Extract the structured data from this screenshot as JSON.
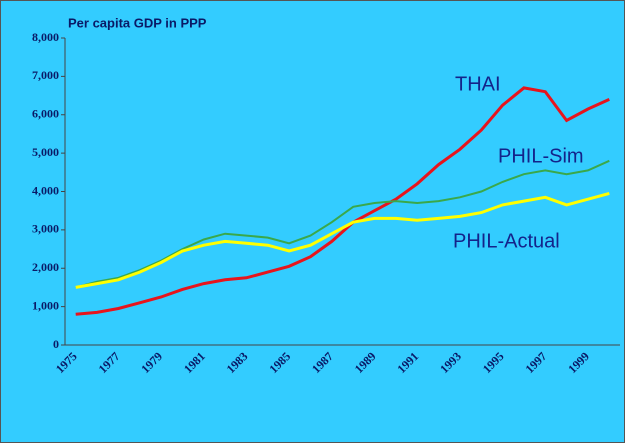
{
  "chart_data": {
    "type": "line",
    "title": "Per capita GDP in PPP",
    "categories": [
      "1975",
      null,
      "1977",
      null,
      "1979",
      null,
      "1981",
      null,
      "1983",
      null,
      "1985",
      null,
      "1987",
      null,
      "1989",
      null,
      "1991",
      null,
      "1993",
      null,
      "1995",
      null,
      "1997",
      null,
      "1999",
      null
    ],
    "series": [
      {
        "name": "THAI",
        "color": "#e8141c",
        "values": [
          800,
          850,
          950,
          1100,
          1250,
          1450,
          1600,
          1700,
          1750,
          1900,
          2050,
          2300,
          2700,
          3200,
          3500,
          3800,
          4200,
          4700,
          5100,
          5600,
          6250,
          6700,
          6600,
          5850,
          6150,
          6400
        ]
      },
      {
        "name": "PHIL-Sim",
        "color": "#3aa84a",
        "values": [
          1500,
          1650,
          1750,
          1950,
          2200,
          2500,
          2750,
          2900,
          2850,
          2800,
          2650,
          2850,
          3200,
          3600,
          3700,
          3750,
          3700,
          3750,
          3850,
          4000,
          4250,
          4450,
          4550,
          4450,
          4550,
          4800
        ]
      },
      {
        "name": "PHIL-Actual",
        "color": "#ffff00",
        "values": [
          1500,
          1600,
          1700,
          1900,
          2150,
          2450,
          2600,
          2700,
          2650,
          2600,
          2450,
          2600,
          2900,
          3200,
          3300,
          3300,
          3250,
          3300,
          3350,
          3450,
          3650,
          3750,
          3850,
          3650,
          3800,
          3950
        ]
      }
    ],
    "ylim": [
      0,
      8000
    ],
    "yticks": [
      0,
      {
        "value": 1000,
        "label": "1,000"
      },
      {
        "value": 2000,
        "label": "2,000"
      },
      {
        "value": 3000,
        "label": "3,000"
      },
      {
        "value": 4000,
        "label": "4,000"
      },
      {
        "value": 5000,
        "label": "5,000"
      },
      {
        "value": 6000,
        "label": "6,000"
      },
      {
        "value": 7000,
        "label": "7,000"
      },
      {
        "value": 8000,
        "label": "8,000"
      }
    ],
    "grid": false
  }
}
